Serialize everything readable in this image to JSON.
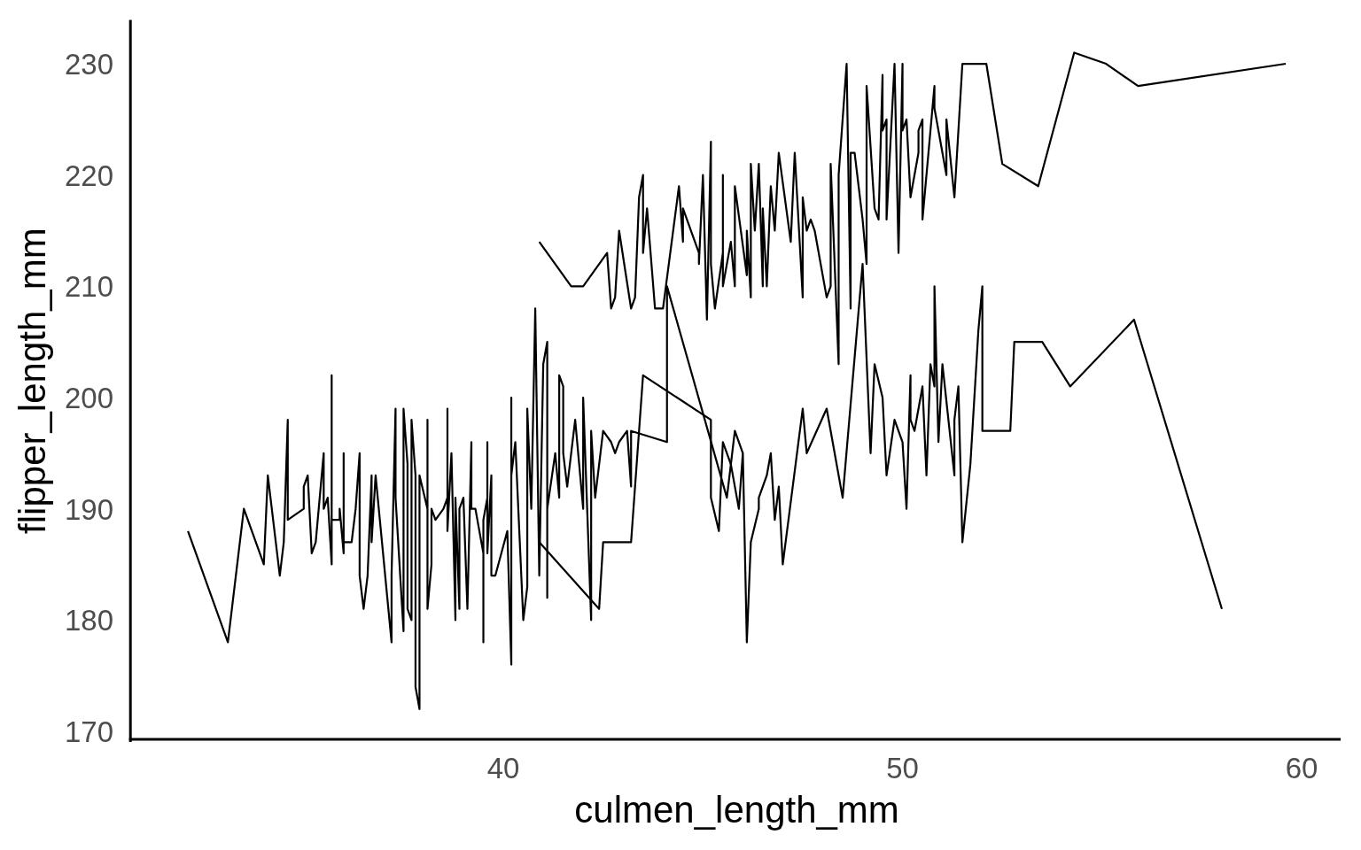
{
  "chart_data": {
    "type": "line",
    "xlabel": "culmen_length_mm",
    "ylabel": "flipper_length_mm",
    "xlim": [
      30.725,
      60.975
    ],
    "ylim": [
      169.05,
      233.95
    ],
    "xticks": [
      40,
      50,
      60
    ],
    "yticks": [
      170,
      180,
      190,
      200,
      210,
      220,
      230
    ],
    "series": [
      {
        "color": "#000000",
        "x": [
          32.1,
          33.1,
          33.5,
          34.0,
          34.1,
          34.4,
          34.5,
          34.6,
          34.6,
          35.0,
          35.0,
          35.1,
          35.2,
          35.3,
          35.5,
          35.5,
          35.6,
          35.7,
          35.7,
          35.7,
          35.9,
          35.9,
          36.0,
          36.0,
          36.0,
          36.2,
          36.3,
          36.4,
          36.4,
          36.5,
          36.6,
          36.7,
          36.7,
          36.8,
          37.2,
          37.2,
          37.3,
          37.3,
          37.5,
          37.5,
          37.6,
          37.6,
          37.7,
          37.7,
          37.8,
          37.8,
          37.9,
          37.9,
          38.1,
          38.1,
          38.1,
          38.2,
          38.2,
          38.3,
          38.5,
          38.6,
          38.6,
          38.6,
          38.7,
          38.8,
          38.8,
          38.9,
          38.9,
          39.0,
          39.1,
          39.2,
          39.2,
          39.3,
          39.5,
          39.5,
          39.5,
          39.6,
          39.6,
          39.6,
          39.7,
          39.7,
          39.8,
          40.1,
          40.2,
          40.2,
          40.2,
          40.3,
          40.5,
          40.6,
          40.6,
          40.7,
          40.8,
          40.9,
          41.0,
          41.1,
          41.1,
          41.1,
          41.3,
          41.4,
          41.4,
          41.5,
          41.5,
          41.6,
          41.8,
          42.0,
          42.0,
          42.2,
          42.2,
          42.3,
          42.5,
          42.7,
          42.8,
          42.9,
          43.1,
          43.2,
          43.2,
          44.1,
          44.1,
          45.6,
          45.8,
          46.0
        ],
        "values": [
          188,
          178,
          190,
          185,
          193,
          184,
          187,
          198,
          189,
          190,
          192,
          193,
          186,
          187,
          195,
          190,
          191,
          185,
          202,
          189,
          189,
          190,
          186,
          195,
          187,
          187,
          190,
          195,
          184,
          181,
          184,
          193,
          187,
          193,
          178,
          184,
          199,
          191,
          179,
          199,
          194,
          181,
          180,
          198,
          193,
          174,
          172,
          193,
          190,
          198,
          181,
          185,
          190,
          189,
          190,
          191,
          199,
          188,
          195,
          180,
          191,
          181,
          190,
          191,
          181,
          196,
          190,
          190,
          186,
          178,
          189,
          191,
          196,
          186,
          193,
          184,
          184,
          188,
          176,
          200,
          193,
          196,
          180,
          183,
          199,
          190,
          208,
          184,
          203,
          205,
          182,
          190,
          195,
          191,
          202,
          201,
          195,
          192,
          198,
          190,
          200,
          180,
          197,
          191,
          197,
          196,
          195,
          196,
          197,
          192,
          197,
          196,
          210,
          191,
          197,
          195
        ]
      },
      {
        "color": "#000000",
        "x": [
          40.9,
          42.4,
          42.5,
          43.2,
          43.5,
          45.2,
          45.2,
          45.4,
          45.5,
          45.7,
          45.9,
          46.0,
          46.1,
          46.2,
          46.4,
          46.4,
          46.6,
          46.7,
          46.8,
          46.9,
          47.0,
          47.5,
          47.6,
          48.1,
          48.5,
          49.0,
          49.2,
          49.3,
          49.5,
          49.6,
          49.8,
          50.0,
          50.1,
          50.2,
          50.2,
          50.3,
          50.5,
          50.6,
          50.7,
          50.8,
          50.8,
          50.9,
          51.0,
          51.3,
          51.3,
          51.4,
          51.5,
          51.7,
          51.9,
          52.0,
          52.0,
          52.2,
          52.7,
          52.8,
          53.5,
          54.2,
          55.8,
          58.0
        ],
        "values": [
          187,
          181,
          187,
          187,
          202,
          198,
          191,
          188,
          196,
          194,
          190,
          195,
          178,
          187,
          190,
          191,
          193,
          195,
          189,
          192,
          185,
          199,
          195,
          199,
          191,
          212,
          195,
          203,
          200,
          193,
          198,
          196,
          190,
          202,
          198,
          197,
          201,
          193,
          203,
          201,
          210,
          196,
          203,
          193,
          198,
          201,
          187,
          194,
          206,
          210,
          197,
          197,
          197,
          205,
          205,
          201,
          207,
          181
        ]
      },
      {
        "color": "#000000",
        "x": [
          40.9,
          41.7,
          42.0,
          42.6,
          42.7,
          42.8,
          42.9,
          43.2,
          43.3,
          43.4,
          43.5,
          43.5,
          43.6,
          43.8,
          44.0,
          44.4,
          44.5,
          44.5,
          44.9,
          44.9,
          45.0,
          45.1,
          45.2,
          45.2,
          45.3,
          45.5,
          45.5,
          45.5,
          45.7,
          45.8,
          45.8,
          46.1,
          46.1,
          46.2,
          46.2,
          46.3,
          46.4,
          46.5,
          46.5,
          46.6,
          46.7,
          46.8,
          46.9,
          47.2,
          47.3,
          47.5,
          47.5,
          47.6,
          47.7,
          47.8,
          48.1,
          48.2,
          48.2,
          48.4,
          48.4,
          48.6,
          48.7,
          48.7,
          48.8,
          49.0,
          49.1,
          49.1,
          49.3,
          49.4,
          49.5,
          49.5,
          49.6,
          49.6,
          49.8,
          49.9,
          50.0,
          50.0,
          50.1,
          50.2,
          50.4,
          50.4,
          50.5,
          50.5,
          50.8,
          50.8,
          51.1,
          51.1,
          51.3,
          51.5,
          52.1,
          52.5,
          53.4,
          54.3,
          55.1,
          55.9,
          59.6
        ],
        "values": [
          214,
          210,
          210,
          213,
          208,
          209,
          215,
          208,
          209,
          218,
          220,
          213,
          217,
          208,
          208,
          219,
          214,
          217,
          213,
          212,
          220,
          207,
          223,
          212,
          208,
          213,
          220,
          210,
          214,
          210,
          219,
          211,
          215,
          209,
          221,
          215,
          221,
          210,
          217,
          210,
          219,
          215,
          222,
          214,
          222,
          209,
          218,
          215,
          216,
          215,
          209,
          210,
          221,
          203,
          220,
          230,
          208,
          222,
          222,
          216,
          212,
          228,
          217,
          216,
          229,
          224,
          225,
          216,
          230,
          213,
          230,
          224,
          225,
          218,
          222,
          224,
          225,
          216,
          228,
          226,
          220,
          225,
          218,
          230,
          230,
          221,
          219,
          231,
          230,
          228,
          230
        ]
      }
    ]
  }
}
